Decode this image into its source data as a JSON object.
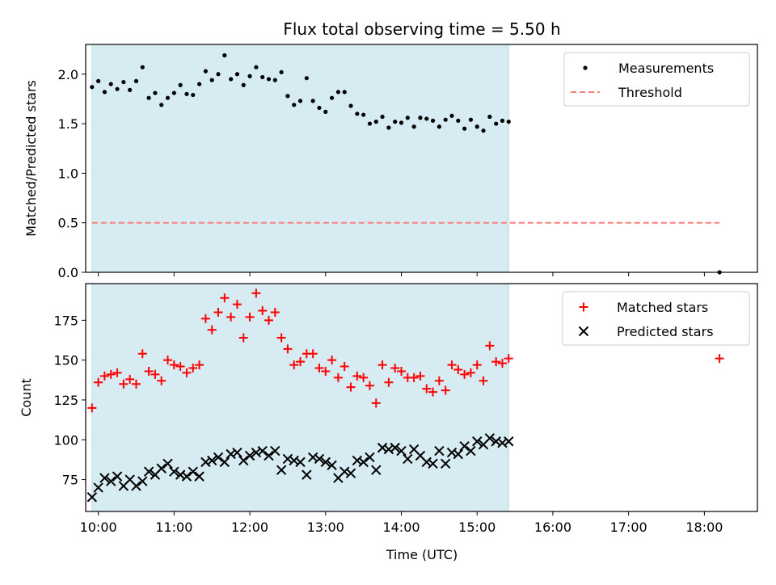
{
  "chart_data": [
    {
      "type": "scatter",
      "title": "Flux total observing time = 5.50 h",
      "xlabel": "",
      "ylabel": "Matched/Predicted stars",
      "ylim": [
        0,
        2.3
      ],
      "xlim": [
        "09:50",
        "18:42"
      ],
      "yticks": [
        "0.0",
        "0.5",
        "1.0",
        "1.5",
        "2.0"
      ],
      "shaded_interval": [
        "09:55",
        "15:25"
      ],
      "legend_position": "top-right",
      "grid": false,
      "series": [
        {
          "name": "Measurements",
          "marker": "dot",
          "color": "#000000",
          "x": [
            "09:55",
            "10:00",
            "10:05",
            "10:10",
            "10:15",
            "10:20",
            "10:25",
            "10:30",
            "10:35",
            "10:40",
            "10:45",
            "10:50",
            "10:55",
            "11:00",
            "11:05",
            "11:10",
            "11:15",
            "11:20",
            "11:25",
            "11:30",
            "11:35",
            "11:40",
            "11:45",
            "11:50",
            "11:55",
            "12:00",
            "12:05",
            "12:10",
            "12:15",
            "12:20",
            "12:25",
            "12:30",
            "12:35",
            "12:40",
            "12:45",
            "12:50",
            "12:55",
            "13:00",
            "13:05",
            "13:10",
            "13:15",
            "13:20",
            "13:25",
            "13:30",
            "13:35",
            "13:40",
            "13:45",
            "13:50",
            "13:55",
            "14:00",
            "14:05",
            "14:10",
            "14:15",
            "14:20",
            "14:25",
            "14:30",
            "14:35",
            "14:40",
            "14:45",
            "14:50",
            "14:55",
            "15:00",
            "15:05",
            "15:10",
            "15:15",
            "15:20",
            "15:25",
            "18:12"
          ],
          "y": [
            1.87,
            1.93,
            1.82,
            1.9,
            1.85,
            1.92,
            1.84,
            1.93,
            2.07,
            1.76,
            1.81,
            1.69,
            1.76,
            1.81,
            1.89,
            1.8,
            1.79,
            1.9,
            2.03,
            1.94,
            2.0,
            2.19,
            1.95,
            2.0,
            1.89,
            1.98,
            2.07,
            1.97,
            1.95,
            1.94,
            2.02,
            1.78,
            1.69,
            1.73,
            1.96,
            1.73,
            1.66,
            1.62,
            1.76,
            1.82,
            1.82,
            1.68,
            1.6,
            1.59,
            1.5,
            1.52,
            1.57,
            1.46,
            1.52,
            1.51,
            1.56,
            1.47,
            1.56,
            1.55,
            1.53,
            1.47,
            1.54,
            1.58,
            1.53,
            1.45,
            1.54,
            1.47,
            1.43,
            1.57,
            1.5,
            1.53,
            1.52,
            0.0
          ]
        },
        {
          "name": "Threshold",
          "marker": "dashed-line",
          "color": "#ff7f7f",
          "x": [
            "09:55",
            "18:12"
          ],
          "y": [
            0.5,
            0.5
          ]
        }
      ]
    },
    {
      "type": "scatter",
      "title": "",
      "xlabel": "Time (UTC)",
      "ylabel": "Count",
      "ylim": [
        55,
        198
      ],
      "xlim": [
        "09:50",
        "18:42"
      ],
      "yticks": [
        "75",
        "100",
        "125",
        "150",
        "175"
      ],
      "xticks": [
        "10:00",
        "11:00",
        "12:00",
        "13:00",
        "14:00",
        "15:00",
        "16:00",
        "17:00",
        "18:00"
      ],
      "shaded_interval": [
        "09:55",
        "15:25"
      ],
      "legend_position": "top-right",
      "grid": false,
      "series": [
        {
          "name": "Matched stars",
          "marker": "plus",
          "color": "#ff0000",
          "x": [
            "09:55",
            "10:00",
            "10:05",
            "10:10",
            "10:15",
            "10:20",
            "10:25",
            "10:30",
            "10:35",
            "10:40",
            "10:45",
            "10:50",
            "10:55",
            "11:00",
            "11:05",
            "11:10",
            "11:15",
            "11:20",
            "11:25",
            "11:30",
            "11:35",
            "11:40",
            "11:45",
            "11:50",
            "11:55",
            "12:00",
            "12:05",
            "12:10",
            "12:15",
            "12:20",
            "12:25",
            "12:30",
            "12:35",
            "12:40",
            "12:45",
            "12:50",
            "12:55",
            "13:00",
            "13:05",
            "13:10",
            "13:15",
            "13:20",
            "13:25",
            "13:30",
            "13:35",
            "13:40",
            "13:45",
            "13:50",
            "13:55",
            "14:00",
            "14:05",
            "14:10",
            "14:15",
            "14:20",
            "14:25",
            "14:30",
            "14:35",
            "14:40",
            "14:45",
            "14:50",
            "14:55",
            "15:00",
            "15:05",
            "15:10",
            "15:15",
            "15:20",
            "15:25",
            "18:12"
          ],
          "y": [
            120,
            136,
            140,
            141,
            142,
            135,
            138,
            135,
            154,
            143,
            141,
            137,
            150,
            147,
            146,
            142,
            145,
            147,
            176,
            169,
            180,
            189,
            177,
            185,
            164,
            177,
            192,
            181,
            175,
            180,
            164,
            157,
            147,
            149,
            154,
            154,
            145,
            143,
            150,
            139,
            146,
            133,
            140,
            139,
            134,
            123,
            147,
            136,
            145,
            143,
            139,
            139,
            140,
            132,
            130,
            137,
            131,
            147,
            144,
            141,
            142,
            147,
            137,
            159,
            149,
            148,
            151,
            151
          ]
        },
        {
          "name": "Predicted stars",
          "marker": "x",
          "color": "#000000",
          "x": [
            "09:55",
            "10:00",
            "10:05",
            "10:10",
            "10:15",
            "10:20",
            "10:25",
            "10:30",
            "10:35",
            "10:40",
            "10:45",
            "10:50",
            "10:55",
            "11:00",
            "11:05",
            "11:10",
            "11:15",
            "11:20",
            "11:25",
            "11:30",
            "11:35",
            "11:40",
            "11:45",
            "11:50",
            "11:55",
            "12:00",
            "12:05",
            "12:10",
            "12:15",
            "12:20",
            "12:25",
            "12:30",
            "12:35",
            "12:40",
            "12:45",
            "12:50",
            "12:55",
            "13:00",
            "13:05",
            "13:10",
            "13:15",
            "13:20",
            "13:25",
            "13:30",
            "13:35",
            "13:40",
            "13:45",
            "13:50",
            "13:55",
            "14:00",
            "14:05",
            "14:10",
            "14:15",
            "14:20",
            "14:25",
            "14:30",
            "14:35",
            "14:40",
            "14:45",
            "14:50",
            "14:55",
            "15:00",
            "15:05",
            "15:10",
            "15:15",
            "15:20",
            "15:25"
          ],
          "y": [
            64,
            70,
            76,
            74,
            77,
            71,
            75,
            71,
            74,
            80,
            78,
            82,
            85,
            80,
            78,
            77,
            80,
            77,
            86,
            87,
            89,
            86,
            91,
            92,
            87,
            90,
            92,
            93,
            90,
            93,
            81,
            88,
            87,
            86,
            78,
            89,
            88,
            86,
            84,
            76,
            80,
            79,
            87,
            86,
            89,
            81,
            95,
            94,
            95,
            93,
            88,
            94,
            90,
            86,
            85,
            93,
            85,
            92,
            91,
            96,
            93,
            99,
            97,
            101,
            99,
            98,
            99
          ]
        }
      ]
    }
  ]
}
